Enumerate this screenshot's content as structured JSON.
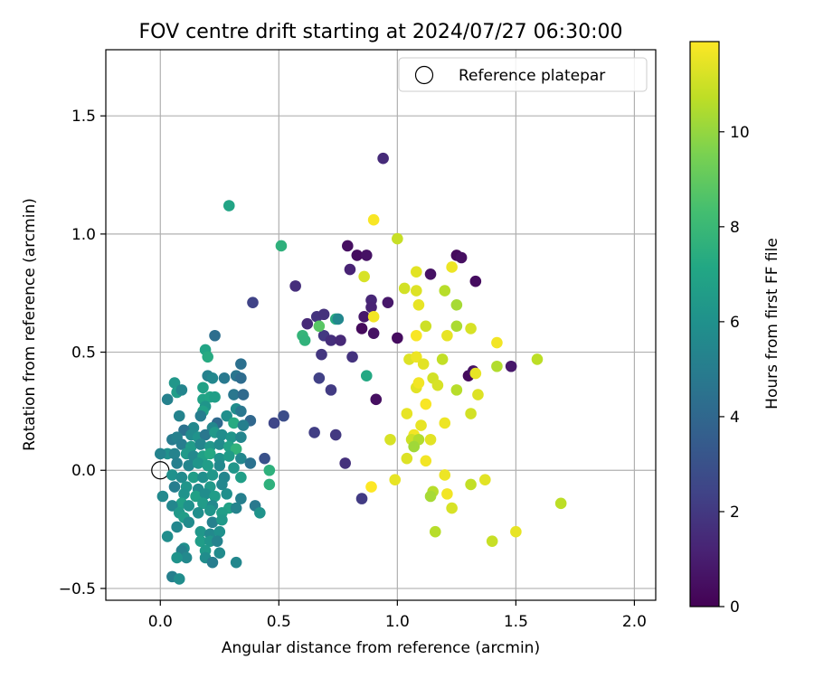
{
  "chart_data": {
    "type": "scatter",
    "title": "FOV centre drift starting at 2024/07/27 06:30:00",
    "xlabel": "Angular distance from reference (arcmin)",
    "ylabel": "Rotation from reference (arcmin)",
    "xlim": [
      -0.23,
      2.09
    ],
    "ylim": [
      -0.55,
      1.78
    ],
    "xticks": [
      0.0,
      0.5,
      1.0,
      1.5,
      2.0
    ],
    "xtick_labels": [
      "0.0",
      "0.5",
      "1.0",
      "1.5",
      "2.0"
    ],
    "yticks": [
      -0.5,
      0.0,
      0.5,
      1.0,
      1.5
    ],
    "ytick_labels": [
      "−0.5",
      "0.0",
      "0.5",
      "1.0",
      "1.5"
    ],
    "grid": true,
    "legend": {
      "placement": "upper right",
      "label": "Reference platepar"
    },
    "reference_point": {
      "x": 0.0,
      "y": 0.0
    },
    "colorbar": {
      "label": "Hours from first FF file",
      "colormap": "viridis",
      "range": [
        0,
        11.9
      ],
      "ticks": [
        0,
        2,
        4,
        6,
        8,
        10
      ],
      "tick_labels": [
        "0",
        "2",
        "4",
        "6",
        "8",
        "10"
      ]
    },
    "points": [
      {
        "x": 0.94,
        "y": 1.32,
        "h": 1.5
      },
      {
        "x": 0.79,
        "y": 0.95,
        "h": 0.5
      },
      {
        "x": 0.83,
        "y": 0.91,
        "h": 0.4
      },
      {
        "x": 0.87,
        "y": 0.91,
        "h": 0.6
      },
      {
        "x": 0.8,
        "y": 0.85,
        "h": 1.2
      },
      {
        "x": 0.57,
        "y": 0.78,
        "h": 1.6
      },
      {
        "x": 0.89,
        "y": 0.72,
        "h": 1.3
      },
      {
        "x": 0.89,
        "y": 0.69,
        "h": 1.2
      },
      {
        "x": 0.96,
        "y": 0.71,
        "h": 0.8
      },
      {
        "x": 0.86,
        "y": 0.65,
        "h": 0.8
      },
      {
        "x": 0.62,
        "y": 0.62,
        "h": 1.4
      },
      {
        "x": 0.66,
        "y": 0.65,
        "h": 1.8
      },
      {
        "x": 0.69,
        "y": 0.66,
        "h": 1.7
      },
      {
        "x": 0.85,
        "y": 0.6,
        "h": 0.3
      },
      {
        "x": 0.9,
        "y": 0.58,
        "h": 0.6
      },
      {
        "x": 0.69,
        "y": 0.57,
        "h": 2.0
      },
      {
        "x": 0.72,
        "y": 0.55,
        "h": 1.6
      },
      {
        "x": 0.76,
        "y": 0.55,
        "h": 1.4
      },
      {
        "x": 0.81,
        "y": 0.48,
        "h": 1.8
      },
      {
        "x": 0.68,
        "y": 0.49,
        "h": 1.9
      },
      {
        "x": 1.0,
        "y": 0.56,
        "h": 0.4
      },
      {
        "x": 0.67,
        "y": 0.39,
        "h": 2.3
      },
      {
        "x": 0.72,
        "y": 0.34,
        "h": 2.1
      },
      {
        "x": 0.91,
        "y": 0.3,
        "h": 0.5
      },
      {
        "x": 0.39,
        "y": 0.71,
        "h": 2.4
      },
      {
        "x": 1.14,
        "y": 0.83,
        "h": 0.6
      },
      {
        "x": 1.25,
        "y": 0.91,
        "h": 0.3
      },
      {
        "x": 1.27,
        "y": 0.9,
        "h": 0.5
      },
      {
        "x": 1.33,
        "y": 0.8,
        "h": 0.4
      },
      {
        "x": 1.3,
        "y": 0.4,
        "h": 0.3
      },
      {
        "x": 1.32,
        "y": 0.42,
        "h": 0.6
      },
      {
        "x": 1.48,
        "y": 0.44,
        "h": 0.8
      },
      {
        "x": 0.65,
        "y": 0.16,
        "h": 2.2
      },
      {
        "x": 0.74,
        "y": 0.15,
        "h": 2.0
      },
      {
        "x": 0.78,
        "y": 0.03,
        "h": 1.7
      },
      {
        "x": 0.85,
        "y": -0.12,
        "h": 2.1
      },
      {
        "x": 0.52,
        "y": 0.23,
        "h": 2.8
      },
      {
        "x": 0.48,
        "y": 0.2,
        "h": 2.5
      },
      {
        "x": 0.44,
        "y": 0.05,
        "h": 3.0
      },
      {
        "x": 0.9,
        "y": 1.06,
        "h": 11.8
      },
      {
        "x": 1.0,
        "y": 0.98,
        "h": 10.9
      },
      {
        "x": 0.86,
        "y": 0.82,
        "h": 11.2
      },
      {
        "x": 1.08,
        "y": 0.84,
        "h": 11.4
      },
      {
        "x": 1.23,
        "y": 0.86,
        "h": 11.6
      },
      {
        "x": 1.03,
        "y": 0.77,
        "h": 11.1
      },
      {
        "x": 1.08,
        "y": 0.76,
        "h": 11.3
      },
      {
        "x": 1.2,
        "y": 0.76,
        "h": 10.6
      },
      {
        "x": 1.09,
        "y": 0.7,
        "h": 11.5
      },
      {
        "x": 1.25,
        "y": 0.7,
        "h": 10.3
      },
      {
        "x": 0.9,
        "y": 0.65,
        "h": 11.7
      },
      {
        "x": 1.12,
        "y": 0.61,
        "h": 11.0
      },
      {
        "x": 1.25,
        "y": 0.61,
        "h": 10.4
      },
      {
        "x": 1.31,
        "y": 0.6,
        "h": 11.2
      },
      {
        "x": 1.08,
        "y": 0.57,
        "h": 11.8
      },
      {
        "x": 1.21,
        "y": 0.57,
        "h": 11.5
      },
      {
        "x": 1.42,
        "y": 0.54,
        "h": 11.7
      },
      {
        "x": 1.05,
        "y": 0.47,
        "h": 11.3
      },
      {
        "x": 1.08,
        "y": 0.48,
        "h": 11.6
      },
      {
        "x": 1.11,
        "y": 0.45,
        "h": 11.4
      },
      {
        "x": 1.19,
        "y": 0.47,
        "h": 10.8
      },
      {
        "x": 1.42,
        "y": 0.44,
        "h": 10.5
      },
      {
        "x": 1.59,
        "y": 0.47,
        "h": 10.7
      },
      {
        "x": 1.33,
        "y": 0.41,
        "h": 11.5
      },
      {
        "x": 1.15,
        "y": 0.39,
        "h": 11.1
      },
      {
        "x": 1.08,
        "y": 0.35,
        "h": 11.4
      },
      {
        "x": 1.09,
        "y": 0.37,
        "h": 11.7
      },
      {
        "x": 1.17,
        "y": 0.36,
        "h": 11.2
      },
      {
        "x": 1.25,
        "y": 0.34,
        "h": 10.6
      },
      {
        "x": 1.34,
        "y": 0.32,
        "h": 11.3
      },
      {
        "x": 1.12,
        "y": 0.28,
        "h": 11.8
      },
      {
        "x": 1.04,
        "y": 0.24,
        "h": 11.5
      },
      {
        "x": 1.31,
        "y": 0.24,
        "h": 11.1
      },
      {
        "x": 1.2,
        "y": 0.2,
        "h": 11.6
      },
      {
        "x": 1.1,
        "y": 0.19,
        "h": 11.5
      },
      {
        "x": 1.07,
        "y": 0.15,
        "h": 11.7
      },
      {
        "x": 0.97,
        "y": 0.13,
        "h": 11.2
      },
      {
        "x": 1.06,
        "y": 0.13,
        "h": 11.0
      },
      {
        "x": 1.09,
        "y": 0.13,
        "h": 10.5
      },
      {
        "x": 1.14,
        "y": 0.13,
        "h": 11.4
      },
      {
        "x": 1.07,
        "y": 0.1,
        "h": 10.2
      },
      {
        "x": 1.04,
        "y": 0.05,
        "h": 11.3
      },
      {
        "x": 1.12,
        "y": 0.04,
        "h": 11.7
      },
      {
        "x": 1.2,
        "y": -0.02,
        "h": 11.6
      },
      {
        "x": 0.89,
        "y": -0.07,
        "h": 11.9
      },
      {
        "x": 0.99,
        "y": -0.04,
        "h": 11.5
      },
      {
        "x": 1.31,
        "y": -0.06,
        "h": 10.8
      },
      {
        "x": 1.37,
        "y": -0.04,
        "h": 11.4
      },
      {
        "x": 1.15,
        "y": -0.09,
        "h": 10.6
      },
      {
        "x": 1.14,
        "y": -0.11,
        "h": 10.3
      },
      {
        "x": 1.21,
        "y": -0.1,
        "h": 11.7
      },
      {
        "x": 1.23,
        "y": -0.16,
        "h": 11.2
      },
      {
        "x": 1.16,
        "y": -0.26,
        "h": 10.6
      },
      {
        "x": 1.4,
        "y": -0.3,
        "h": 10.9
      },
      {
        "x": 1.5,
        "y": -0.26,
        "h": 11.5
      },
      {
        "x": 1.69,
        "y": -0.14,
        "h": 10.7
      },
      {
        "x": 0.29,
        "y": 1.12,
        "h": 7.0
      },
      {
        "x": 0.51,
        "y": 0.95,
        "h": 7.6
      },
      {
        "x": 0.74,
        "y": 0.64,
        "h": 7.4
      },
      {
        "x": 0.6,
        "y": 0.57,
        "h": 7.8
      },
      {
        "x": 0.61,
        "y": 0.55,
        "h": 7.7
      },
      {
        "x": 0.67,
        "y": 0.61,
        "h": 8.8
      },
      {
        "x": 0.87,
        "y": 0.4,
        "h": 7.2
      },
      {
        "x": 0.75,
        "y": 0.64,
        "h": 5.5
      },
      {
        "x": 0.23,
        "y": 0.57,
        "h": 4.3
      },
      {
        "x": 0.19,
        "y": 0.51,
        "h": 7.0
      },
      {
        "x": 0.2,
        "y": 0.48,
        "h": 7.3
      },
      {
        "x": 0.34,
        "y": 0.45,
        "h": 4.4
      },
      {
        "x": 0.27,
        "y": 0.39,
        "h": 4.8
      },
      {
        "x": 0.32,
        "y": 0.4,
        "h": 4.6
      },
      {
        "x": 0.34,
        "y": 0.39,
        "h": 4.2
      },
      {
        "x": 0.2,
        "y": 0.4,
        "h": 5.2
      },
      {
        "x": 0.22,
        "y": 0.39,
        "h": 5.5
      },
      {
        "x": 0.06,
        "y": 0.37,
        "h": 6.3
      },
      {
        "x": 0.07,
        "y": 0.33,
        "h": 6.6
      },
      {
        "x": 0.09,
        "y": 0.34,
        "h": 5.4
      },
      {
        "x": 0.03,
        "y": 0.3,
        "h": 5.2
      },
      {
        "x": 0.18,
        "y": 0.35,
        "h": 6.8
      },
      {
        "x": 0.31,
        "y": 0.32,
        "h": 4.7
      },
      {
        "x": 0.35,
        "y": 0.32,
        "h": 4.1
      },
      {
        "x": 0.18,
        "y": 0.3,
        "h": 6.9
      },
      {
        "x": 0.21,
        "y": 0.31,
        "h": 7.0
      },
      {
        "x": 0.23,
        "y": 0.31,
        "h": 6.7
      },
      {
        "x": 0.32,
        "y": 0.26,
        "h": 5.8
      },
      {
        "x": 0.34,
        "y": 0.25,
        "h": 4.7
      },
      {
        "x": 0.19,
        "y": 0.27,
        "h": 6.2
      },
      {
        "x": 0.18,
        "y": 0.25,
        "h": 6.8
      },
      {
        "x": 0.08,
        "y": 0.23,
        "h": 5.3
      },
      {
        "x": 0.17,
        "y": 0.23,
        "h": 5.0
      },
      {
        "x": 0.28,
        "y": 0.23,
        "h": 5.9
      },
      {
        "x": 0.38,
        "y": 0.21,
        "h": 4.0
      },
      {
        "x": 0.24,
        "y": 0.2,
        "h": 4.1
      },
      {
        "x": 0.31,
        "y": 0.2,
        "h": 7.3
      },
      {
        "x": 0.35,
        "y": 0.19,
        "h": 5.1
      },
      {
        "x": 0.22,
        "y": 0.18,
        "h": 5.5
      },
      {
        "x": 0.14,
        "y": 0.18,
        "h": 5.6
      },
      {
        "x": 0.1,
        "y": 0.17,
        "h": 4.5
      },
      {
        "x": 0.05,
        "y": 0.13,
        "h": 4.9
      },
      {
        "x": 0.07,
        "y": 0.14,
        "h": 5.2
      },
      {
        "x": 0.13,
        "y": 0.15,
        "h": 5.7
      },
      {
        "x": 0.16,
        "y": 0.14,
        "h": 6.1
      },
      {
        "x": 0.19,
        "y": 0.15,
        "h": 4.7
      },
      {
        "x": 0.23,
        "y": 0.16,
        "h": 6.4
      },
      {
        "x": 0.26,
        "y": 0.15,
        "h": 5.8
      },
      {
        "x": 0.3,
        "y": 0.14,
        "h": 6.2
      },
      {
        "x": 0.34,
        "y": 0.14,
        "h": 5.4
      },
      {
        "x": 0.09,
        "y": 0.11,
        "h": 5.0
      },
      {
        "x": 0.13,
        "y": 0.1,
        "h": 6.5
      },
      {
        "x": 0.17,
        "y": 0.11,
        "h": 5.4
      },
      {
        "x": 0.21,
        "y": 0.1,
        "h": 6.3
      },
      {
        "x": 0.25,
        "y": 0.11,
        "h": 5.7
      },
      {
        "x": 0.29,
        "y": 0.1,
        "h": 6.9
      },
      {
        "x": 0.32,
        "y": 0.09,
        "h": 7.7
      },
      {
        "x": 0.03,
        "y": 0.07,
        "h": 6.0
      },
      {
        "x": 0.06,
        "y": 0.07,
        "h": 5.3
      },
      {
        "x": 0.11,
        "y": 0.07,
        "h": 6.4
      },
      {
        "x": 0.14,
        "y": 0.06,
        "h": 5.6
      },
      {
        "x": 0.18,
        "y": 0.06,
        "h": 6.8
      },
      {
        "x": 0.21,
        "y": 0.07,
        "h": 7.2
      },
      {
        "x": 0.25,
        "y": 0.05,
        "h": 6.1
      },
      {
        "x": 0.29,
        "y": 0.06,
        "h": 6.5
      },
      {
        "x": 0.34,
        "y": 0.05,
        "h": 5.5
      },
      {
        "x": 0.38,
        "y": 0.03,
        "h": 4.5
      },
      {
        "x": 0.07,
        "y": 0.03,
        "h": 5.1
      },
      {
        "x": 0.12,
        "y": 0.02,
        "h": 5.4
      },
      {
        "x": 0.16,
        "y": 0.03,
        "h": 6.2
      },
      {
        "x": 0.2,
        "y": 0.02,
        "h": 6.6
      },
      {
        "x": 0.25,
        "y": 0.02,
        "h": 5.6
      },
      {
        "x": 0.31,
        "y": 0.01,
        "h": 6.3
      },
      {
        "x": 0.46,
        "y": 0.0,
        "h": 7.6
      },
      {
        "x": 0.05,
        "y": -0.02,
        "h": 6.0
      },
      {
        "x": 0.09,
        "y": -0.03,
        "h": 5.7
      },
      {
        "x": 0.14,
        "y": -0.03,
        "h": 6.6
      },
      {
        "x": 0.18,
        "y": -0.03,
        "h": 5.9
      },
      {
        "x": 0.22,
        "y": -0.02,
        "h": 6.3
      },
      {
        "x": 0.27,
        "y": -0.03,
        "h": 5.4
      },
      {
        "x": 0.34,
        "y": -0.03,
        "h": 6.7
      },
      {
        "x": 0.06,
        "y": -0.07,
        "h": 5.0
      },
      {
        "x": 0.11,
        "y": -0.07,
        "h": 6.2
      },
      {
        "x": 0.16,
        "y": -0.08,
        "h": 5.7
      },
      {
        "x": 0.21,
        "y": -0.07,
        "h": 6.4
      },
      {
        "x": 0.26,
        "y": -0.06,
        "h": 5.5
      },
      {
        "x": 0.46,
        "y": -0.06,
        "h": 7.6
      },
      {
        "x": 0.1,
        "y": -0.1,
        "h": 6.1
      },
      {
        "x": 0.15,
        "y": -0.11,
        "h": 6.8
      },
      {
        "x": 0.19,
        "y": -0.1,
        "h": 5.8
      },
      {
        "x": 0.23,
        "y": -0.11,
        "h": 6.6
      },
      {
        "x": 0.28,
        "y": -0.1,
        "h": 5.9
      },
      {
        "x": 0.34,
        "y": -0.12,
        "h": 5.1
      },
      {
        "x": 0.09,
        "y": -0.14,
        "h": 6.8
      },
      {
        "x": 0.12,
        "y": -0.15,
        "h": 6.0
      },
      {
        "x": 0.05,
        "y": -0.15,
        "h": 5.5
      },
      {
        "x": 0.18,
        "y": -0.14,
        "h": 6.5
      },
      {
        "x": 0.22,
        "y": -0.15,
        "h": 5.6
      },
      {
        "x": 0.29,
        "y": -0.16,
        "h": 6.9
      },
      {
        "x": 0.32,
        "y": -0.16,
        "h": 5.3
      },
      {
        "x": 0.4,
        "y": -0.15,
        "h": 4.8
      },
      {
        "x": 0.08,
        "y": -0.18,
        "h": 6.4
      },
      {
        "x": 0.16,
        "y": -0.18,
        "h": 5.9
      },
      {
        "x": 0.21,
        "y": -0.17,
        "h": 6.2
      },
      {
        "x": 0.26,
        "y": -0.18,
        "h": 6.7
      },
      {
        "x": 0.42,
        "y": -0.18,
        "h": 6.1
      },
      {
        "x": 0.1,
        "y": -0.2,
        "h": 6.6
      },
      {
        "x": 0.12,
        "y": -0.22,
        "h": 5.7
      },
      {
        "x": 0.22,
        "y": -0.22,
        "h": 5.2
      },
      {
        "x": 0.26,
        "y": -0.21,
        "h": 6.4
      },
      {
        "x": 0.07,
        "y": -0.24,
        "h": 5.5
      },
      {
        "x": 0.17,
        "y": -0.26,
        "h": 6.3
      },
      {
        "x": 0.21,
        "y": -0.27,
        "h": 5.6
      },
      {
        "x": 0.25,
        "y": -0.26,
        "h": 6.0
      },
      {
        "x": 0.03,
        "y": -0.28,
        "h": 5.8
      },
      {
        "x": 0.17,
        "y": -0.3,
        "h": 6.6
      },
      {
        "x": 0.21,
        "y": -0.3,
        "h": 6.2
      },
      {
        "x": 0.24,
        "y": -0.3,
        "h": 5.3
      },
      {
        "x": 0.1,
        "y": -0.33,
        "h": 5.9
      },
      {
        "x": 0.09,
        "y": -0.34,
        "h": 5.2
      },
      {
        "x": 0.19,
        "y": -0.34,
        "h": 6.4
      },
      {
        "x": 0.25,
        "y": -0.35,
        "h": 5.7
      },
      {
        "x": 0.11,
        "y": -0.37,
        "h": 5.6
      },
      {
        "x": 0.07,
        "y": -0.37,
        "h": 6.1
      },
      {
        "x": 0.19,
        "y": -0.37,
        "h": 5.8
      },
      {
        "x": 0.22,
        "y": -0.39,
        "h": 5.0
      },
      {
        "x": 0.32,
        "y": -0.39,
        "h": 5.5
      },
      {
        "x": 0.05,
        "y": -0.45,
        "h": 5.1
      },
      {
        "x": 0.08,
        "y": -0.46,
        "h": 5.8
      },
      {
        "x": 0.01,
        "y": -0.11,
        "h": 5.6
      },
      {
        "x": 0.0,
        "y": 0.07,
        "h": 5.3
      }
    ]
  }
}
